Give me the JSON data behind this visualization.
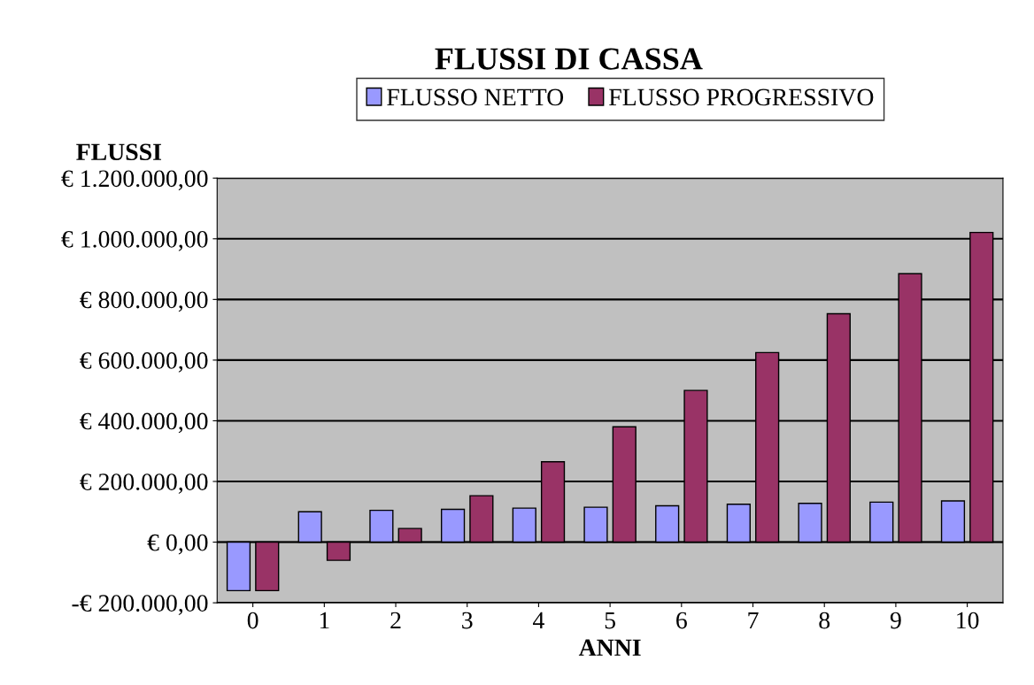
{
  "chart_data": {
    "type": "bar",
    "title": "FLUSSI DI CASSA",
    "xlabel": "ANNI",
    "ylabel": "FLUSSI",
    "categories": [
      "0",
      "1",
      "2",
      "3",
      "4",
      "5",
      "6",
      "7",
      "8",
      "9",
      "10"
    ],
    "series": [
      {
        "name": "FLUSSO NETTO",
        "color": "#9999ff",
        "values": [
          -160000,
          100000,
          105000,
          108000,
          112000,
          115000,
          120000,
          125000,
          128000,
          132000,
          136000
        ]
      },
      {
        "name": "FLUSSO PROGRESSIVO",
        "color": "#993366",
        "values": [
          -160000,
          -60000,
          45000,
          153000,
          265000,
          380000,
          500000,
          625000,
          753000,
          885000,
          1021000
        ]
      }
    ],
    "ylim": [
      -200000,
      1200000
    ],
    "yticks": [
      {
        "value": -200000,
        "label": "-€ 200.000,00"
      },
      {
        "value": 0,
        "label": "€ 0,00"
      },
      {
        "value": 200000,
        "label": "€ 200.000,00"
      },
      {
        "value": 400000,
        "label": "€ 400.000,00"
      },
      {
        "value": 600000,
        "label": "€ 600.000,00"
      },
      {
        "value": 800000,
        "label": "€ 800.000,00"
      },
      {
        "value": 1000000,
        "label": "€ 1.000.000,00"
      },
      {
        "value": 1200000,
        "label": "€ 1.200.000,00"
      }
    ],
    "grid": "y",
    "legend": "top"
  }
}
